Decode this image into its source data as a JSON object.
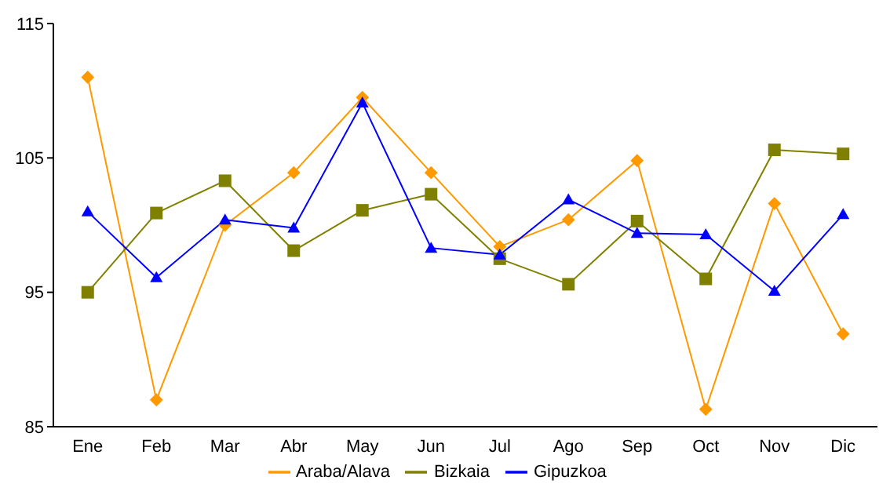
{
  "chart_data": {
    "type": "line",
    "categories": [
      "Ene",
      "Feb",
      "Mar",
      "Abr",
      "May",
      "Jun",
      "Jul",
      "Ago",
      "Sep",
      "Oct",
      "Nov",
      "Dic"
    ],
    "series": [
      {
        "name": "Araba/Alava",
        "color": "#ff9900",
        "marker": "diamond",
        "values": [
          111.0,
          87.0,
          100.0,
          103.9,
          109.5,
          103.9,
          98.4,
          100.4,
          104.8,
          86.3,
          101.6,
          91.9
        ]
      },
      {
        "name": "Bizkaia",
        "color": "#808000",
        "marker": "square",
        "values": [
          95.0,
          100.9,
          103.3,
          98.1,
          101.1,
          102.3,
          97.5,
          95.6,
          100.3,
          96.0,
          105.6,
          105.3
        ]
      },
      {
        "name": "Gipuzkoa",
        "color": "#0000ff",
        "marker": "triangle",
        "values": [
          101.0,
          96.1,
          100.4,
          99.8,
          109.1,
          98.3,
          97.8,
          101.9,
          99.4,
          99.3,
          95.1,
          100.8
        ]
      }
    ],
    "ylim": [
      85,
      115
    ],
    "yticks": [
      85,
      95,
      105,
      115
    ],
    "grid": false,
    "legend": "bottom",
    "line_style": "solid"
  }
}
